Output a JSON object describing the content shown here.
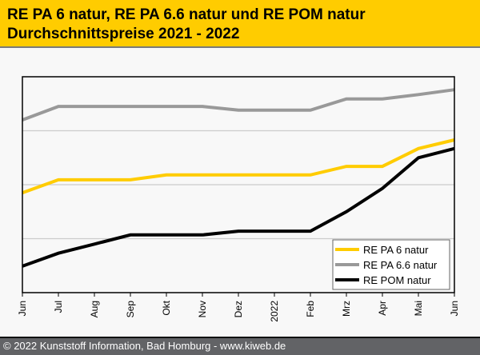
{
  "header": {
    "title_line1": "RE PA 6 natur, RE PA 6.6 natur und RE POM natur",
    "title_line2": "Durchschnittspreise 2021 - 2022"
  },
  "footer": {
    "copyright": "© 2022 Kunststoff Information, Bad Homburg - www.kiweb.de"
  },
  "chart_data": {
    "type": "line",
    "title": "RE PA 6 natur, RE PA 6.6 natur und RE POM natur Durchschnittspreise 2021 - 2022",
    "xlabel": "",
    "ylabel": "",
    "y_units": "relative index (no y-axis labels shown; gridline units)",
    "ylim": [
      0,
      4
    ],
    "y_gridlines": [
      1,
      2,
      3
    ],
    "grid": true,
    "legend_position": "bottom-right",
    "categories": [
      "Jun",
      "Jul",
      "Aug",
      "Sep",
      "Okt",
      "Nov",
      "Dez",
      "2022",
      "Feb",
      "Mrz",
      "Apr",
      "Mai",
      "Jun"
    ],
    "series": [
      {
        "name": "RE PA 6 natur",
        "color": "#ffcc00",
        "values": [
          1.85,
          2.09,
          2.09,
          2.09,
          2.18,
          2.18,
          2.18,
          2.18,
          2.18,
          2.34,
          2.34,
          2.67,
          2.83
        ]
      },
      {
        "name": "RE PA 6.6 natur",
        "color": "#999999",
        "values": [
          3.2,
          3.45,
          3.45,
          3.45,
          3.45,
          3.45,
          3.38,
          3.38,
          3.38,
          3.59,
          3.59,
          3.67,
          3.76
        ]
      },
      {
        "name": "RE POM natur",
        "color": "#000000",
        "values": [
          0.49,
          0.73,
          0.9,
          1.07,
          1.07,
          1.07,
          1.14,
          1.14,
          1.14,
          1.5,
          1.93,
          2.5,
          2.67
        ]
      }
    ]
  }
}
